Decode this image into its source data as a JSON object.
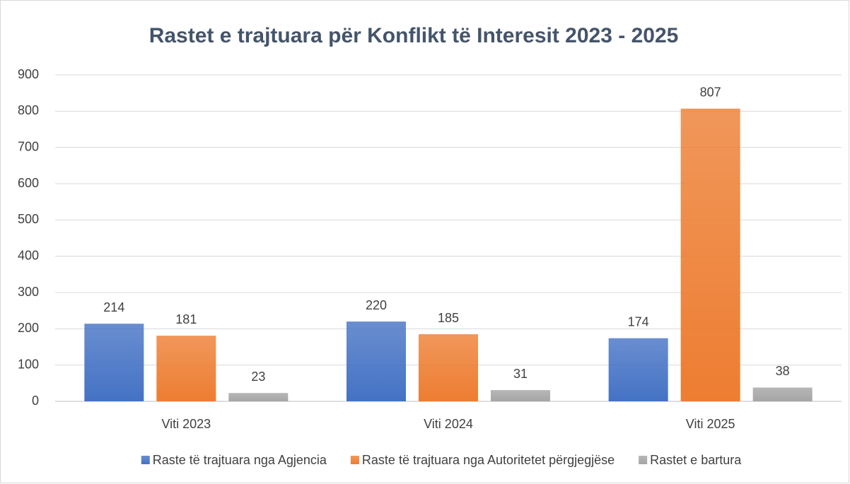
{
  "chart_data": {
    "type": "bar",
    "title": "Rastet e trajtuara për Konflikt të Interesit 2023 - 2025",
    "categories": [
      "Viti 2023",
      "Viti 2024",
      "Viti 2025"
    ],
    "series": [
      {
        "name": "Raste të trajtuara nga Agjencia",
        "color": "#4472c4",
        "values": [
          214,
          220,
          174
        ]
      },
      {
        "name": "Raste të trajtuara nga Autoritetet përgjegjëse",
        "color": "#ed7d31",
        "values": [
          181,
          185,
          807
        ]
      },
      {
        "name": "Rastet e bartura",
        "color": "#a5a5a5",
        "values": [
          23,
          31,
          38
        ]
      }
    ],
    "ylim": [
      0,
      900
    ],
    "yticks": [
      0,
      100,
      200,
      300,
      400,
      500,
      600,
      700,
      800,
      900
    ],
    "grid": true,
    "legend": "bottom"
  }
}
